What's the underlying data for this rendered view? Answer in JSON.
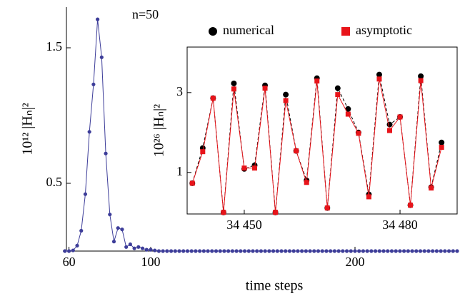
{
  "chart_data": [
    {
      "type": "line",
      "annotation": "n=50",
      "x_label": "time steps",
      "y_label": "10¹²  |Hₙ|²",
      "xlim": [
        57,
        250
      ],
      "ylim": [
        0,
        1.8
      ],
      "xticks": [
        60,
        100,
        200
      ],
      "yticks": [
        0.5,
        1.5
      ],
      "series": [
        {
          "color": "#3d3d99",
          "marker": "circle",
          "x": [
            58,
            60,
            62,
            64,
            66,
            68,
            70,
            72,
            74,
            76,
            78,
            80,
            82,
            84,
            86,
            88,
            90,
            92,
            94,
            96,
            98,
            100,
            102,
            104,
            106,
            108,
            110,
            112,
            114,
            116,
            118,
            120,
            122,
            124,
            126,
            128,
            130,
            132,
            134,
            136,
            138,
            140,
            142,
            144,
            146,
            148,
            150,
            152,
            154,
            156,
            158,
            160,
            162,
            164,
            166,
            168,
            170,
            172,
            174,
            176,
            178,
            180,
            182,
            184,
            186,
            188,
            190,
            192,
            194,
            196,
            198,
            200,
            202,
            204,
            206,
            208,
            210,
            212,
            214,
            216,
            218,
            220,
            222,
            224,
            226,
            228,
            230,
            232,
            234,
            236,
            238,
            240,
            242,
            244,
            246,
            248,
            250
          ],
          "values": [
            0,
            0,
            0.005,
            0.04,
            0.15,
            0.42,
            0.88,
            1.23,
            1.71,
            1.43,
            0.72,
            0.27,
            0.07,
            0.17,
            0.16,
            0.03,
            0.05,
            0.02,
            0.03,
            0.02,
            0.01,
            0.01,
            0.005,
            0,
            0,
            0,
            0,
            0,
            0,
            0,
            0,
            0,
            0,
            0,
            0,
            0,
            0,
            0,
            0,
            0,
            0,
            0,
            0,
            0,
            0,
            0,
            0,
            0,
            0,
            0,
            0,
            0,
            0,
            0,
            0,
            0,
            0,
            0,
            0,
            0,
            0,
            0,
            0,
            0,
            0,
            0,
            0,
            0,
            0,
            0,
            0,
            0,
            0,
            0,
            0,
            0,
            0,
            0,
            0,
            0,
            0,
            0,
            0,
            0,
            0,
            0,
            0,
            0,
            0,
            0,
            0,
            0,
            0,
            0,
            0,
            0,
            0
          ]
        }
      ]
    },
    {
      "type": "line",
      "y_label": "10²⁶  |Hₙ|²",
      "frame": true,
      "xlim": [
        34439,
        34491
      ],
      "ylim": [
        -0.04,
        4.14
      ],
      "xticks": [
        {
          "value": 34450,
          "label": "34 450"
        },
        {
          "value": 34480,
          "label": "34 480"
        }
      ],
      "yticks": [
        1,
        3
      ],
      "x": [
        34440,
        34442,
        34444,
        34446,
        34448,
        34450,
        34452,
        34454,
        34456,
        34458,
        34460,
        34462,
        34464,
        34466,
        34468,
        34470,
        34472,
        34474,
        34476,
        34478,
        34480,
        34482,
        34484,
        34486,
        34488
      ],
      "series": [
        {
          "name": "numerical",
          "color": "#000000",
          "marker": "circle",
          "dashed": true,
          "values": [
            0.73,
            1.61,
            2.86,
            0,
            3.23,
            1.09,
            1.18,
            3.18,
            0,
            2.95,
            1.54,
            0.8,
            3.36,
            0.11,
            3.11,
            2.59,
            2.0,
            0.45,
            3.45,
            2.2,
            2.39,
            0.18,
            3.41,
            0.63,
            1.75
          ]
        },
        {
          "name": "asymptotic",
          "color": "#e8141a",
          "marker": "square",
          "dashed": false,
          "values": [
            0.73,
            1.52,
            2.86,
            0,
            3.09,
            1.11,
            1.11,
            3.11,
            0,
            2.8,
            1.54,
            0.75,
            3.29,
            0.11,
            2.95,
            2.46,
            1.98,
            0.39,
            3.34,
            2.05,
            2.39,
            0.18,
            3.3,
            0.61,
            1.63
          ]
        }
      ]
    }
  ]
}
